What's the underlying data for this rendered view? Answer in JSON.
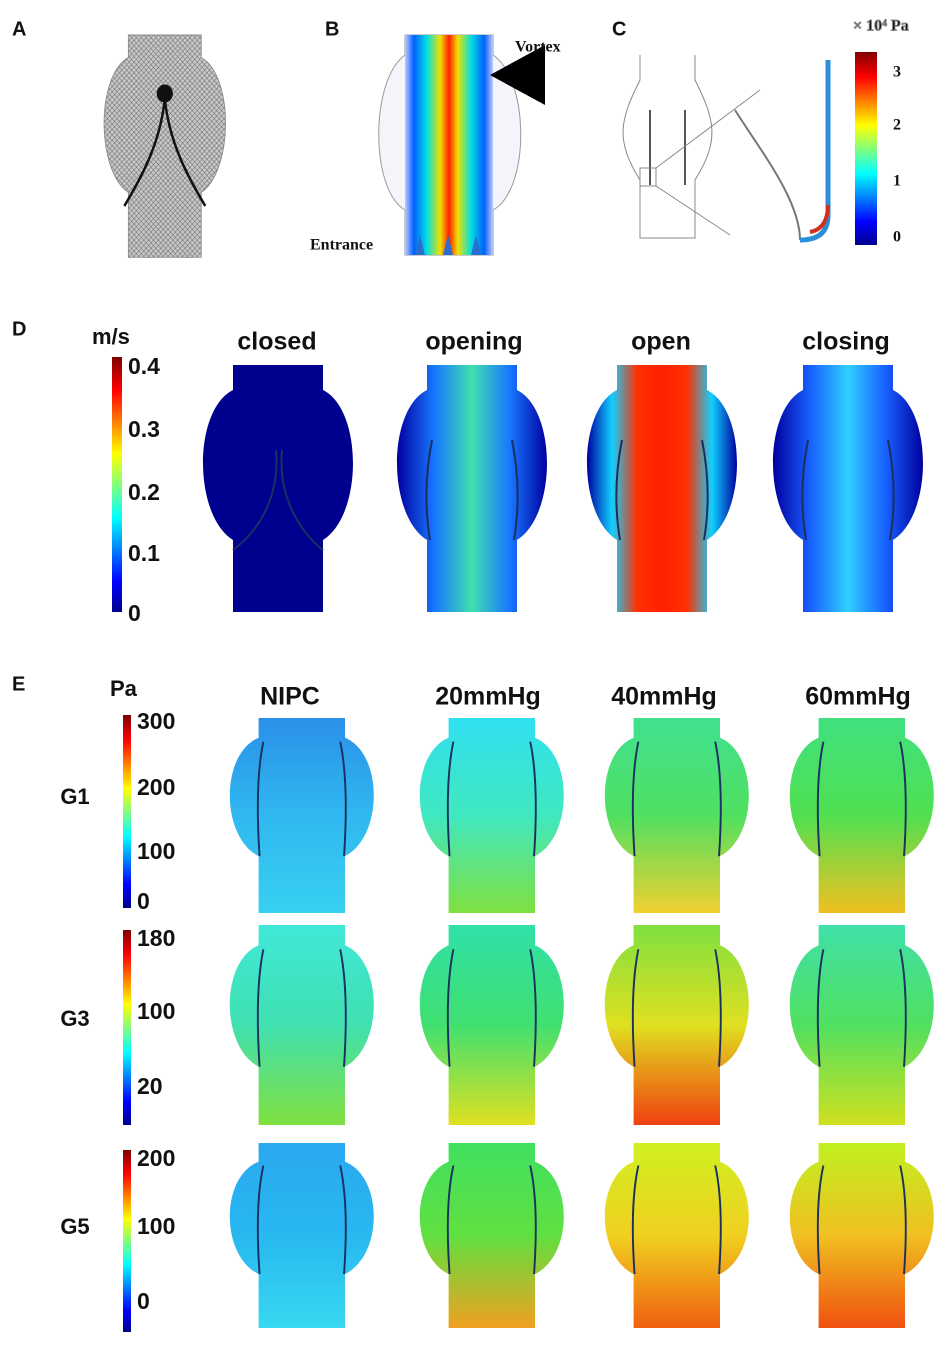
{
  "panels": {
    "a": {
      "label": "A"
    },
    "b": {
      "label": "B",
      "annotations": [
        "Vortex",
        "Entrance"
      ]
    },
    "c": {
      "label": "C",
      "colorbar": {
        "unit": "× 10⁴ Pa",
        "ticks": [
          3,
          2,
          1,
          0
        ]
      }
    },
    "d": {
      "label": "D",
      "colorbar": {
        "unit": "m/s",
        "ticks": [
          0.4,
          0.3,
          0.2,
          0.1,
          0
        ]
      },
      "columns": [
        "closed",
        "opening",
        "open",
        "closing"
      ]
    },
    "e": {
      "label": "E",
      "unit": "Pa",
      "columns": [
        "NIPC",
        "20mmHg",
        "40mmHg",
        "60mmHg"
      ],
      "rows": [
        {
          "label": "G1",
          "ticks": [
            300,
            200,
            100,
            0
          ]
        },
        {
          "label": "G3",
          "ticks": [
            180,
            100,
            20
          ]
        },
        {
          "label": "G5",
          "ticks": [
            200,
            100,
            0
          ]
        }
      ]
    }
  }
}
